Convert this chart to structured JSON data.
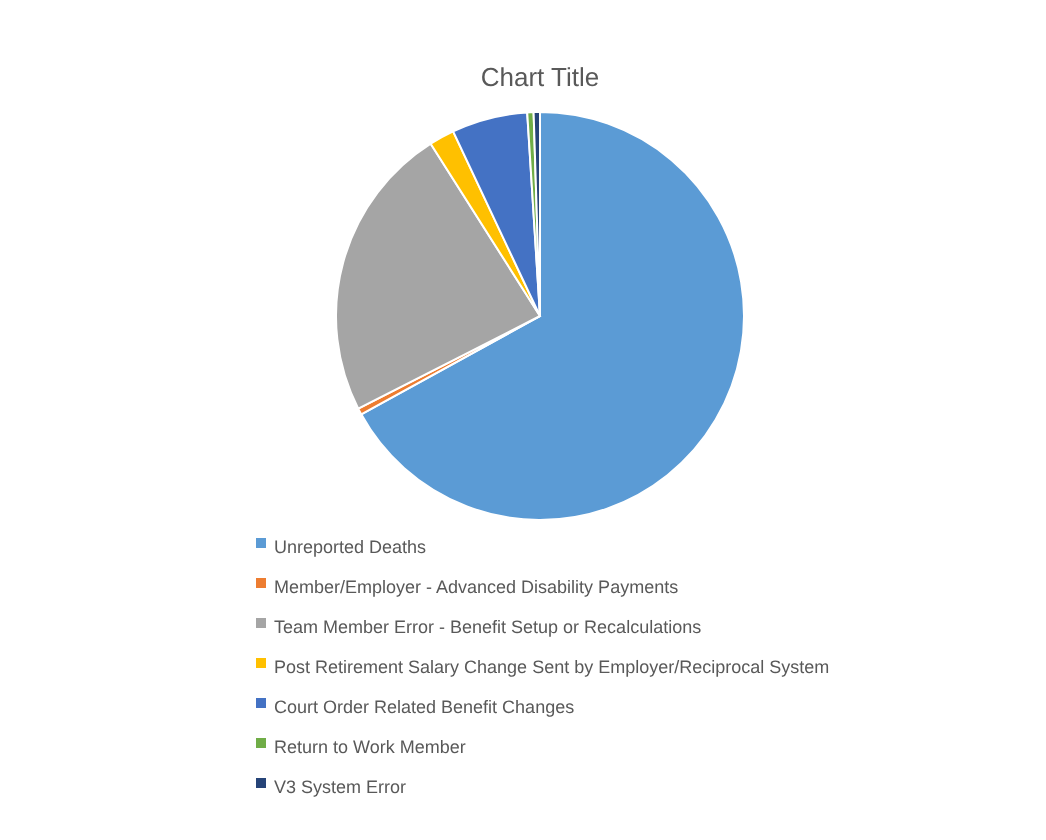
{
  "chart_data": {
    "type": "pie",
    "title": "Chart Title",
    "categories": [
      "Unreported Deaths",
      "Member/Employer - Advanced Disability Payments",
      "Team Member Error - Benefit Setup or Recalculations",
      "Post Retirement Salary Change Sent by Employer/Reciprocal System",
      "Court Order Related Benefit Changes",
      "Return to Work Member",
      "V3 System Error"
    ],
    "values": [
      67,
      0.5,
      23.5,
      2,
      6,
      0.5,
      0.5
    ],
    "colors": [
      "#5b9bd5",
      "#ed7d31",
      "#a5a5a5",
      "#ffc000",
      "#4472c4",
      "#70ad47",
      "#264478"
    ],
    "legend": "bottom"
  }
}
